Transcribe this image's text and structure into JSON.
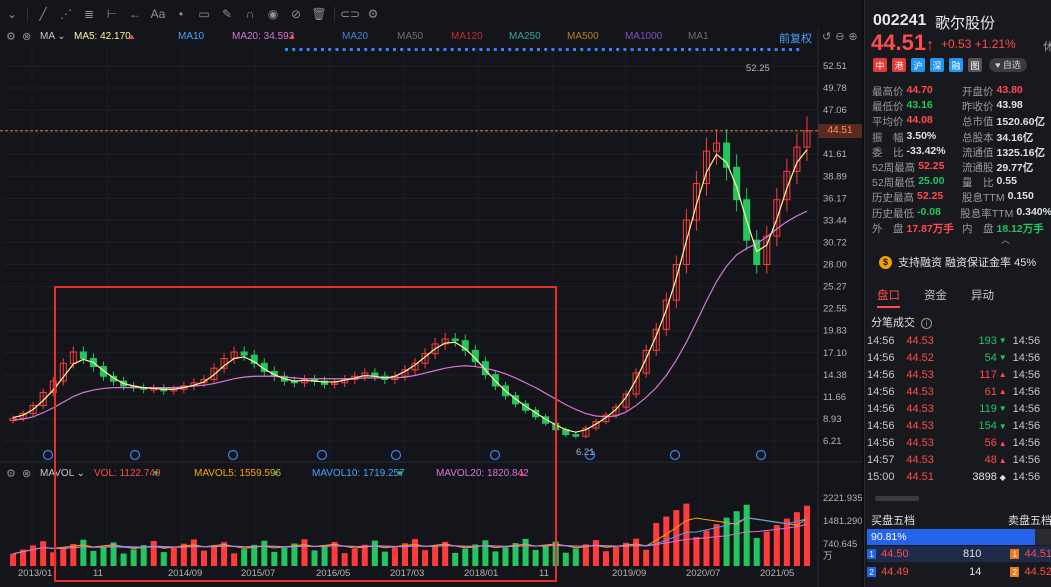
{
  "toolbar": {
    "icons": [
      "chevron-icon",
      "line-tool-icon",
      "multi-line-icon",
      "fib-icon",
      "measure-icon",
      "arrow-icon",
      "text-icon",
      "note-icon",
      "pen-icon",
      "magnet-icon",
      "eye-icon",
      "no-draw-icon",
      "trash-icon",
      "link-icon",
      "settings-icon"
    ],
    "text_tool": "Aa"
  },
  "main_legend": {
    "indicator": "MA",
    "ma5": "MA5: 42.170",
    "ma10": "MA10",
    "ma20": "MA20: 34.593",
    "ma20b": "MA20",
    "ma50": "MA50",
    "ma120": "MA120",
    "ma250": "MA250",
    "ma500": "MA500",
    "ma1000": "MA1000",
    "ma1": "MA1",
    "restore": "前复权"
  },
  "vol_legend": {
    "indicator": "MAVOL",
    "vol": "VOL: 1122.749",
    "mavol5": "MAVOL5: 1559.596",
    "mavol10": "MAVOL10: 1719.257",
    "mavol20": "MAVOL20: 1820.842",
    "unit": "万"
  },
  "colors": {
    "up": "#ff3b3b",
    "down": "#22c55e",
    "ma5": "#fff59a",
    "ma20": "#d975d9",
    "mavol5": "#ffa500",
    "mavol10": "#4aa3ff",
    "mavol20": "#d975d9"
  },
  "chart_data": {
    "type": "candlestick",
    "price_axis": [
      "52.51",
      "49.78",
      "47.06",
      "44.51",
      "41.61",
      "38.89",
      "36.17",
      "33.44",
      "30.72",
      "28.00",
      "25.27",
      "22.55",
      "19.83",
      "17.10",
      "14.38",
      "11.66",
      "8.93",
      "6.21"
    ],
    "current_price": "44.51",
    "high_marker": "52.25",
    "low_marker": "6.21",
    "volume_axis": [
      "2221.935",
      "1481.290",
      "740.645"
    ],
    "dates": [
      "2013/01",
      "11",
      "2014/09",
      "2015/07",
      "2016/05",
      "2017/03",
      "2018/01",
      "11",
      "2019/09",
      "2020/07",
      "2021/05"
    ],
    "close": [
      9.0,
      9.6,
      10.6,
      12.2,
      13.6,
      15.8,
      17.2,
      16.4,
      15.4,
      14.2,
      13.6,
      13.0,
      12.8,
      12.6,
      12.7,
      12.4,
      12.6,
      13.0,
      13.4,
      13.8,
      15.2,
      16.4,
      17.2,
      16.8,
      15.8,
      14.8,
      14.2,
      13.6,
      13.4,
      13.8,
      13.6,
      13.2,
      13.4,
      13.8,
      14.2,
      14.6,
      14.2,
      13.8,
      14.2,
      15.0,
      15.8,
      17.0,
      18.2,
      18.8,
      18.6,
      17.4,
      16.0,
      14.4,
      13.0,
      11.8,
      10.8,
      10.0,
      9.2,
      8.4,
      7.6,
      7.0,
      6.8,
      7.8,
      8.6,
      9.4,
      10.4,
      12.0,
      14.6,
      17.4,
      20.0,
      23.6,
      28.0,
      33.5,
      38.0,
      42.0,
      43.0,
      40.0,
      36.0,
      31.0,
      28.0,
      31.5,
      36.0,
      39.5,
      42.5,
      44.51
    ],
    "ma5": [
      9.1,
      9.4,
      10.1,
      11.2,
      12.5,
      14.1,
      15.7,
      16.3,
      15.9,
      14.9,
      14.0,
      13.3,
      13.0,
      12.8,
      12.7,
      12.6,
      12.6,
      12.8,
      13.1,
      13.5,
      14.4,
      15.5,
      16.4,
      16.6,
      16.0,
      15.1,
      14.4,
      13.9,
      13.6,
      13.7,
      13.6,
      13.5,
      13.5,
      13.7,
      14.0,
      14.3,
      14.2,
      14.0,
      14.2,
      14.8,
      15.6,
      16.6,
      17.6,
      18.3,
      18.4,
      17.6,
      16.4,
      15.0,
      13.6,
      12.4,
      11.4,
      10.5,
      9.7,
      8.9,
      8.2,
      7.6,
      7.3,
      7.6,
      8.3,
      9.1,
      10.1,
      11.6,
      13.8,
      16.4,
      19.2,
      22.4,
      26.3,
      30.9,
      35.4,
      39.4,
      41.6,
      40.6,
      37.6,
      33.4,
      29.6,
      30.4,
      33.6,
      37.4,
      40.6,
      42.17
    ],
    "ma20": [
      8.8,
      8.9,
      9.2,
      9.7,
      10.3,
      11.0,
      11.7,
      12.2,
      12.5,
      12.7,
      12.8,
      12.8,
      12.8,
      12.8,
      12.8,
      12.8,
      12.8,
      12.9,
      13.0,
      13.1,
      13.3,
      13.6,
      13.9,
      14.1,
      14.2,
      14.2,
      14.2,
      14.1,
      14.0,
      13.9,
      13.9,
      13.9,
      13.9,
      13.9,
      13.9,
      14.0,
      14.0,
      14.0,
      14.0,
      14.1,
      14.3,
      14.6,
      14.9,
      15.2,
      15.4,
      15.5,
      15.4,
      15.2,
      14.9,
      14.5,
      14.0,
      13.4,
      12.8,
      12.1,
      11.4,
      10.7,
      10.1,
      9.6,
      9.3,
      9.2,
      9.3,
      9.8,
      10.6,
      11.6,
      12.8,
      14.3,
      16.2,
      18.4,
      20.9,
      23.5,
      25.9,
      27.8,
      29.2,
      30.0,
      30.6,
      31.4,
      32.4,
      33.3,
      34.0,
      34.593
    ]
  },
  "quote": {
    "code": "002241",
    "name": "歌尔股份",
    "price": "44.51",
    "arrow": "↑",
    "change": "+0.53 +1.21%",
    "extra": "休",
    "badges": [
      "中",
      "港",
      "沪",
      "深",
      "融",
      "图"
    ],
    "fav_label": "自选",
    "stats": [
      {
        "l1": "最高价",
        "v1": "44.70",
        "c1": "red",
        "l2": "开盘价",
        "v2": "43.80",
        "c2": "red"
      },
      {
        "l1": "最低价",
        "v1": "43.16",
        "c1": "green",
        "l2": "昨收价",
        "v2": "43.98",
        "c2": ""
      },
      {
        "l1": "平均价",
        "v1": "44.08",
        "c1": "red",
        "l2": "总市值",
        "v2": "1520.60亿",
        "c2": ""
      },
      {
        "l1": "振　幅",
        "v1": "3.50%",
        "c1": "",
        "l2": "总股本",
        "v2": "34.16亿",
        "c2": ""
      },
      {
        "l1": "委　比",
        "v1": "-33.42%",
        "c1": "",
        "l2": "流通值",
        "v2": "1325.16亿",
        "c2": ""
      },
      {
        "l1": "52周最高",
        "v1": "52.25",
        "c1": "red",
        "l2": "流通股",
        "v2": "29.77亿",
        "c2": ""
      },
      {
        "l1": "52周最低",
        "v1": "25.00",
        "c1": "green",
        "l2": "量　比",
        "v2": "0.55",
        "c2": ""
      },
      {
        "l1": "历史最高",
        "v1": "52.25",
        "c1": "red",
        "l2": "股息TTM",
        "v2": "0.150",
        "c2": ""
      },
      {
        "l1": "历史最低",
        "v1": "-0.08",
        "c1": "green",
        "l2": "股息率TTM",
        "v2": "0.340%",
        "c2": ""
      },
      {
        "l1": "外　盘",
        "v1": "17.87万手",
        "c1": "red",
        "l2": "内　盘",
        "v2": "18.12万手",
        "c2": "green"
      }
    ],
    "margin_text": "支持融资 融资保证金率 45%",
    "margin_icon": "$"
  },
  "tabs": [
    "盘口",
    "资金",
    "异动"
  ],
  "ticks": {
    "title": "分笔成交",
    "rows": [
      {
        "time": "14:56",
        "price": "44.53",
        "pc": "red",
        "vol": "193",
        "vc": "green",
        "arr": "▼",
        "time2": "14:56"
      },
      {
        "time": "14:56",
        "price": "44.52",
        "pc": "red",
        "vol": "54",
        "vc": "green",
        "arr": "▼",
        "time2": "14:56"
      },
      {
        "time": "14:56",
        "price": "44.53",
        "pc": "red",
        "vol": "117",
        "vc": "red",
        "arr": "▲",
        "time2": "14:56"
      },
      {
        "time": "14:56",
        "price": "44.53",
        "pc": "red",
        "vol": "61",
        "vc": "red",
        "arr": "▲",
        "time2": "14:56"
      },
      {
        "time": "14:56",
        "price": "44.53",
        "pc": "red",
        "vol": "119",
        "vc": "green",
        "arr": "▼",
        "time2": "14:56"
      },
      {
        "time": "14:56",
        "price": "44.53",
        "pc": "red",
        "vol": "154",
        "vc": "green",
        "arr": "▼",
        "time2": "14:56"
      },
      {
        "time": "14:56",
        "price": "44.53",
        "pc": "red",
        "vol": "56",
        "vc": "red",
        "arr": "▲",
        "time2": "14:56"
      },
      {
        "time": "14:57",
        "price": "44.53",
        "pc": "red",
        "vol": "48",
        "vc": "red",
        "arr": "▲",
        "time2": "14:56"
      },
      {
        "time": "15:00",
        "price": "44.51",
        "pc": "red",
        "vol": "3898",
        "vc": "",
        "arr": "◆",
        "time2": "14:56"
      }
    ]
  },
  "orderbook": {
    "buy_title": "买盘五档",
    "sell_title": "卖盘五档",
    "ratio": "90.81%",
    "ratio_value": 0.9081,
    "rows": [
      {
        "idx": "1",
        "price": "44.50",
        "vol": "810",
        "sidx": "1",
        "sprice": "44.51"
      },
      {
        "idx": "2",
        "price": "44.49",
        "vol": "14",
        "sidx": "2",
        "sprice": "44.52"
      }
    ]
  }
}
